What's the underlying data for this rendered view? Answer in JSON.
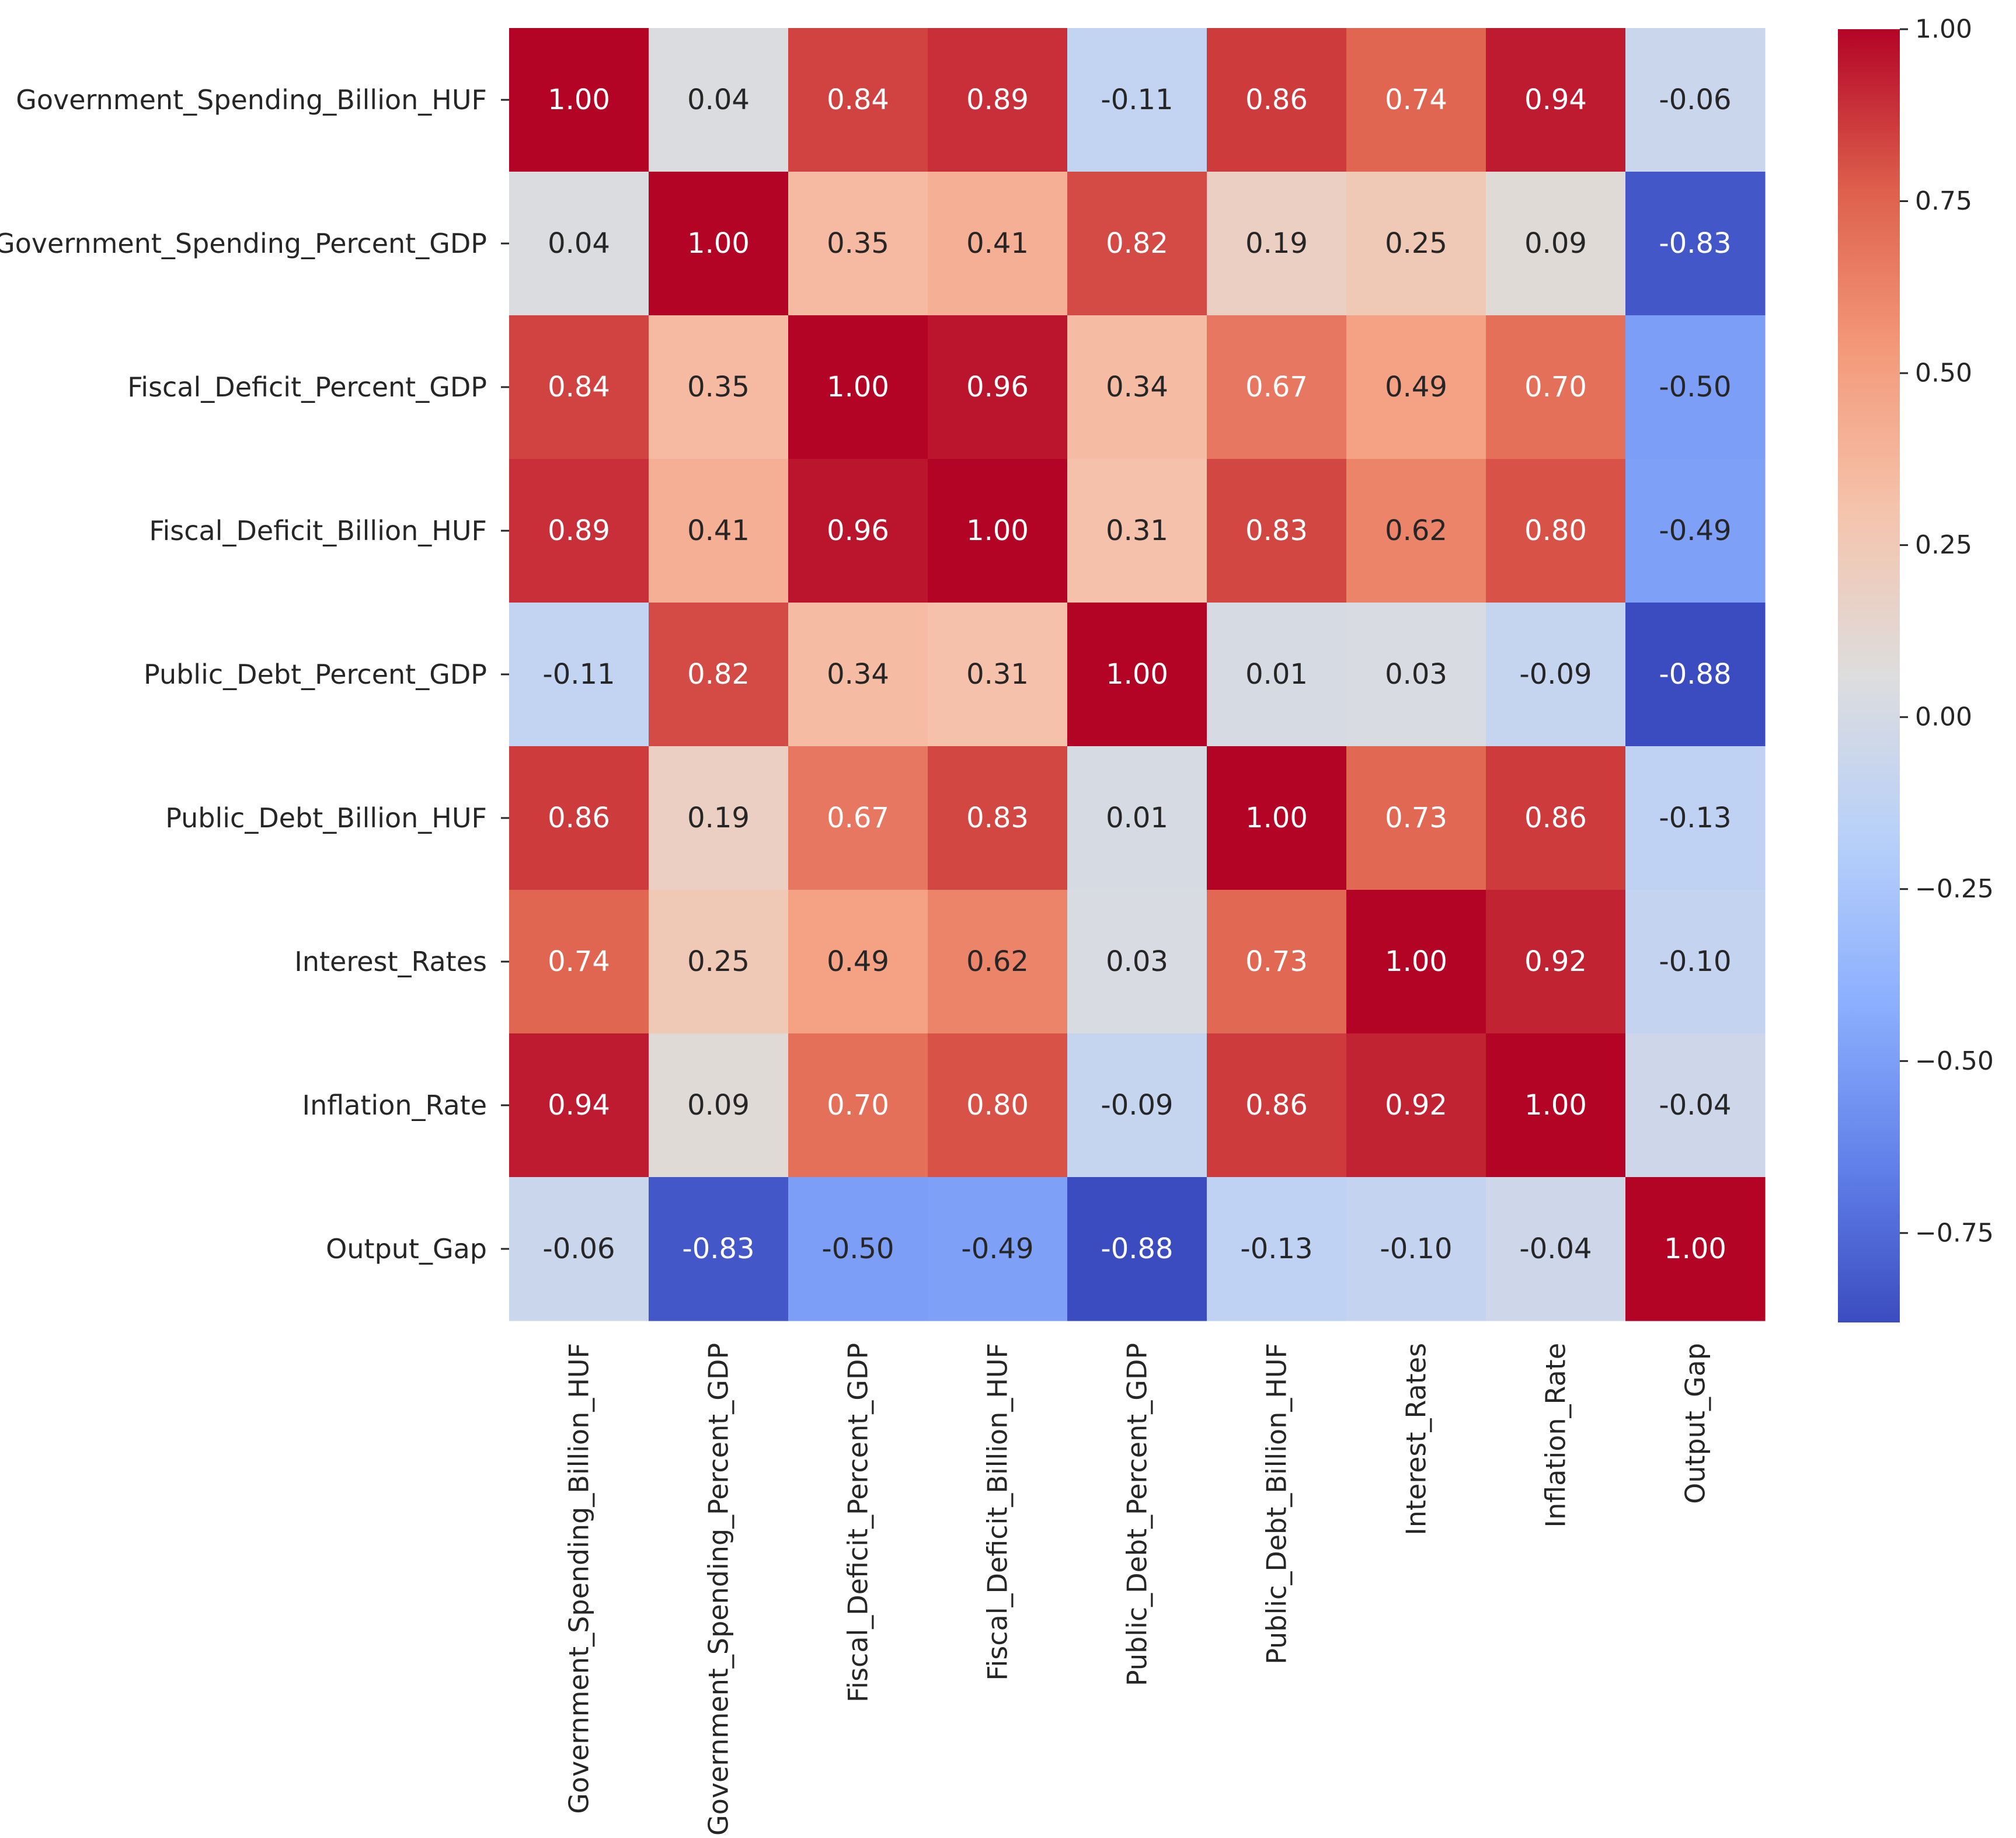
{
  "chart_data": {
    "type": "heatmap",
    "title": "",
    "xlabel": "",
    "ylabel": "",
    "colormap": "coolwarm",
    "variables": [
      "Government_Spending_Billion_HUF",
      "Government_Spending_Percent_GDP",
      "Fiscal_Deficit_Percent_GDP",
      "Fiscal_Deficit_Billion_HUF",
      "Public_Debt_Percent_GDP",
      "Public_Debt_Billion_HUF",
      "Interest_Rates",
      "Inflation_Rate",
      "Output_Gap"
    ],
    "values": [
      [
        1.0,
        0.04,
        0.84,
        0.89,
        -0.11,
        0.86,
        0.74,
        0.94,
        -0.06
      ],
      [
        0.04,
        1.0,
        0.35,
        0.41,
        0.82,
        0.19,
        0.25,
        0.09,
        -0.83
      ],
      [
        0.84,
        0.35,
        1.0,
        0.96,
        0.34,
        0.67,
        0.49,
        0.7,
        -0.5
      ],
      [
        0.89,
        0.41,
        0.96,
        1.0,
        0.31,
        0.83,
        0.62,
        0.8,
        -0.49
      ],
      [
        -0.11,
        0.82,
        0.34,
        0.31,
        1.0,
        0.01,
        0.03,
        -0.09,
        -0.88
      ],
      [
        0.86,
        0.19,
        0.67,
        0.83,
        0.01,
        1.0,
        0.73,
        0.86,
        -0.13
      ],
      [
        0.74,
        0.25,
        0.49,
        0.62,
        0.03,
        0.73,
        1.0,
        0.92,
        -0.1
      ],
      [
        0.94,
        0.09,
        0.7,
        0.8,
        -0.09,
        0.86,
        0.92,
        1.0,
        -0.04
      ],
      [
        -0.06,
        -0.83,
        -0.5,
        -0.49,
        -0.88,
        -0.13,
        -0.1,
        -0.04,
        1.0
      ]
    ],
    "annotation_format": "2 decimals",
    "colorbar": {
      "vmin": -0.88,
      "vmax": 1.0,
      "ticks": [
        1.0,
        0.75,
        0.5,
        0.25,
        0.0,
        -0.25,
        -0.5,
        -0.75
      ],
      "tick_labels": [
        "1.00",
        "0.75",
        "0.50",
        "0.25",
        "0.00",
        "−0.25",
        "−0.50",
        "−0.75"
      ]
    }
  }
}
